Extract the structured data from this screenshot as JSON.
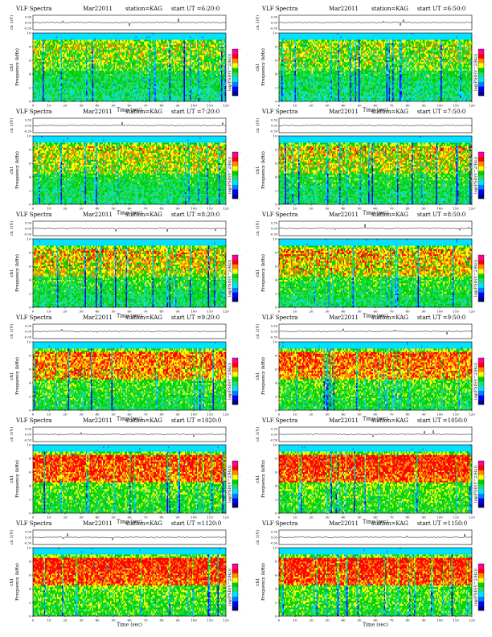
{
  "figure": {
    "title_text": "VLF Spectra",
    "date_text": "Mar22011",
    "station_text": "station=KAG",
    "ut_prefix": "start  UT =",
    "ch_axis_label": "ch 1(V)",
    "ch_ticks": [
      "0.30",
      "0.00",
      "-0.30"
    ],
    "freq_axis_label": "ch1\nFrequency (kHz)",
    "freq_ticks": [
      "0",
      "2",
      "4",
      "6",
      "8",
      "10"
    ],
    "time_axis_label": "Time (sec)",
    "time_ticks": [
      "0",
      "10",
      "20",
      "30",
      "40",
      "50",
      "60",
      "70",
      "80",
      "90",
      "100",
      "110",
      "120"
    ],
    "colorbar_label": "log(PSD(V^2/Hz))",
    "colorbar_ticks": [
      "-",
      "-",
      "-",
      "-"
    ],
    "colors": [
      "#000080",
      "#0000ff",
      "#0080ff",
      "#00e0ff",
      "#22dd66",
      "#00d000",
      "#ffff00",
      "#ff8800",
      "#ff0000",
      "#ff00a0"
    ]
  },
  "panels": [
    {
      "ut": "6:20:0"
    },
    {
      "ut": "6:50:0"
    },
    {
      "ut": "7:20:0"
    },
    {
      "ut": "7:50:0"
    },
    {
      "ut": "8:20:0"
    },
    {
      "ut": "8:50:0"
    },
    {
      "ut": "9:20:0"
    },
    {
      "ut": "9:50:0"
    },
    {
      "ut": "1020:0"
    },
    {
      "ut": "1050:0"
    },
    {
      "ut": "1120:0"
    },
    {
      "ut": "1150:0"
    }
  ],
  "chart_data": {
    "type": "heatmap",
    "x": {
      "label": "Time (sec)",
      "range": [
        0,
        120
      ]
    },
    "y": {
      "label": "Frequency (kHz)",
      "range": [
        0,
        10
      ]
    },
    "ch_range": [
      -0.3,
      0.3
    ],
    "colorbar": "log(PSD(V^2/Hz))",
    "grid": false,
    "legend": "right colorbar",
    "intensity": [
      {
        "ut": "6:20:0",
        "activity": 0.25
      },
      {
        "ut": "6:50:0",
        "activity": 0.25
      },
      {
        "ut": "7:20:0",
        "activity": 0.35
      },
      {
        "ut": "7:50:0",
        "activity": 0.4
      },
      {
        "ut": "8:20:0",
        "activity": 0.45
      },
      {
        "ut": "8:50:0",
        "activity": 0.5
      },
      {
        "ut": "9:20:0",
        "activity": 0.65
      },
      {
        "ut": "9:50:0",
        "activity": 0.7
      },
      {
        "ut": "1020:0",
        "activity": 0.8
      },
      {
        "ut": "1050:0",
        "activity": 0.85
      },
      {
        "ut": "1120:0",
        "activity": 0.85
      },
      {
        "ut": "1150:0",
        "activity": 0.85
      }
    ]
  }
}
